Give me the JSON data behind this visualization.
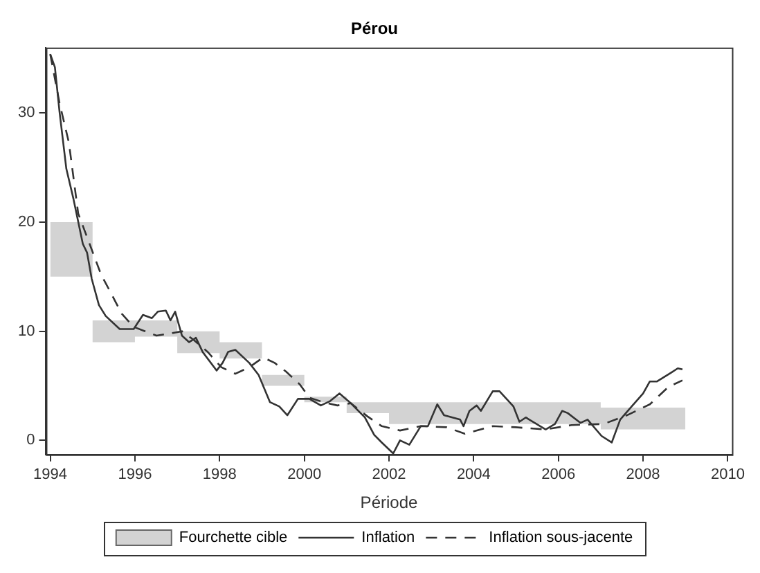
{
  "chart_data": {
    "type": "line",
    "title": "Pérou",
    "xlabel": "Période",
    "xlim": [
      1993.9,
      2010.1
    ],
    "xticks": [
      1994,
      1996,
      1998,
      2000,
      2002,
      2004,
      2006,
      2008,
      2010
    ],
    "ylim": [
      -1.3,
      36
    ],
    "yticks": [
      0,
      10,
      20,
      30
    ],
    "grid": false,
    "legend": "bottom",
    "marker": "none",
    "series": [
      {
        "name": "Fourchette cible",
        "type": "area",
        "color": "#d3d3d3",
        "x": [
          1994,
          1995,
          1995,
          1996,
          1996,
          1997,
          1997,
          1998,
          1998,
          1999,
          1999,
          2000,
          2000,
          2001,
          2001,
          2002,
          2002,
          2007,
          2007,
          2009
        ],
        "values": [
          null,
          null,
          null,
          null,
          null,
          null,
          null,
          null,
          null,
          null,
          null,
          null,
          null,
          null,
          null,
          null,
          null,
          null,
          null,
          null
        ],
        "upper": [
          20,
          20,
          11,
          11,
          11,
          11,
          10,
          10,
          9,
          9,
          6,
          6,
          4,
          4,
          3.5,
          3.5,
          3.5,
          3.5,
          3,
          3
        ],
        "lower": [
          15,
          15,
          9,
          9,
          9.5,
          9.5,
          8,
          8,
          7.5,
          7.5,
          5,
          5,
          3.5,
          3.5,
          2.5,
          2.5,
          1.5,
          1.5,
          1,
          1
        ]
      },
      {
        "name": "Inflation",
        "type": "line",
        "color": "#333333",
        "line_style": "solid",
        "x": [
          1994,
          1994.11,
          1994.22,
          1994.38,
          1994.55,
          1994.77,
          1994.87,
          1994.98,
          1995.15,
          1995.31,
          1995.64,
          1995.97,
          1996.19,
          1996.4,
          1996.54,
          1996.73,
          1996.84,
          1996.95,
          1997.11,
          1997.28,
          1997.44,
          1997.6,
          1997.93,
          1998.07,
          1998.2,
          1998.37,
          1998.7,
          1998.92,
          1999.19,
          1999.41,
          1999.6,
          1999.85,
          2000.12,
          2000.39,
          2000.61,
          2000.83,
          2001.1,
          2001.43,
          2001.65,
          2001.83,
          2002.1,
          2002.26,
          2002.48,
          2002.75,
          2002.92,
          2003.14,
          2003.3,
          2003.68,
          2003.76,
          2003.9,
          2004.07,
          2004.17,
          2004.45,
          2004.61,
          2004.94,
          2005.08,
          2005.23,
          2005.7,
          2005.92,
          2006.09,
          2006.22,
          2006.52,
          2006.69,
          2007.02,
          2007.26,
          2007.46,
          2007.73,
          2008,
          2008.16,
          2008.33,
          2008.66,
          2008.82,
          2008.93
        ],
        "values": [
          35.4,
          34.2,
          30.1,
          24.9,
          22.1,
          18,
          17.2,
          14.8,
          12.4,
          11.4,
          10.2,
          10.2,
          11.5,
          11.2,
          11.8,
          11.9,
          11,
          11.8,
          9.6,
          9,
          9.4,
          8.1,
          6.4,
          7.1,
          8.1,
          8.3,
          7.1,
          6,
          3.5,
          3.1,
          2.3,
          3.8,
          3.8,
          3.2,
          3.6,
          4.3,
          3.4,
          2.1,
          0.5,
          -0.2,
          -1.2,
          0,
          -0.4,
          1.3,
          1.3,
          3.3,
          2.3,
          1.9,
          1.3,
          2.7,
          3.2,
          2.7,
          4.5,
          4.5,
          3.1,
          1.7,
          2.1,
          1,
          1.5,
          2.7,
          2.5,
          1.6,
          1.9,
          0.4,
          -0.2,
          1.9,
          3.1,
          4.3,
          5.4,
          5.4,
          6.2,
          6.6,
          6.5
        ]
      },
      {
        "name": "Inflation sous-jacente",
        "type": "line",
        "color": "#333333",
        "line_style": "dashed",
        "x": [
          1994,
          1994.22,
          1994.44,
          1994.66,
          1994.93,
          1995.2,
          1995.42,
          1995.69,
          1995.97,
          1996.24,
          1996.51,
          1996.84,
          1997.11,
          1997.39,
          1997.72,
          1998.04,
          1998.37,
          1998.7,
          1999.03,
          1999.3,
          1999.57,
          1999.9,
          2000.12,
          2000.45,
          2000.78,
          2001.1,
          2001.49,
          2001.83,
          2002.26,
          2002.75,
          2003.36,
          2003.79,
          2004.45,
          2004.99,
          2005.7,
          2006.31,
          2007.07,
          2007.62,
          2008.16,
          2008.6,
          2008.93
        ],
        "values": [
          35.4,
          30.9,
          27.3,
          20.8,
          18,
          15.2,
          13.6,
          11.6,
          10.4,
          10,
          9.6,
          9.8,
          10,
          9.2,
          8.1,
          6.7,
          6.1,
          6.7,
          7.6,
          7.1,
          6.3,
          5.1,
          3.9,
          3.5,
          3.2,
          3.4,
          2.2,
          1.3,
          0.9,
          1.3,
          1.2,
          0.6,
          1.3,
          1.2,
          1,
          1.4,
          1.5,
          2.3,
          3.3,
          4.9,
          5.5
        ]
      }
    ]
  }
}
